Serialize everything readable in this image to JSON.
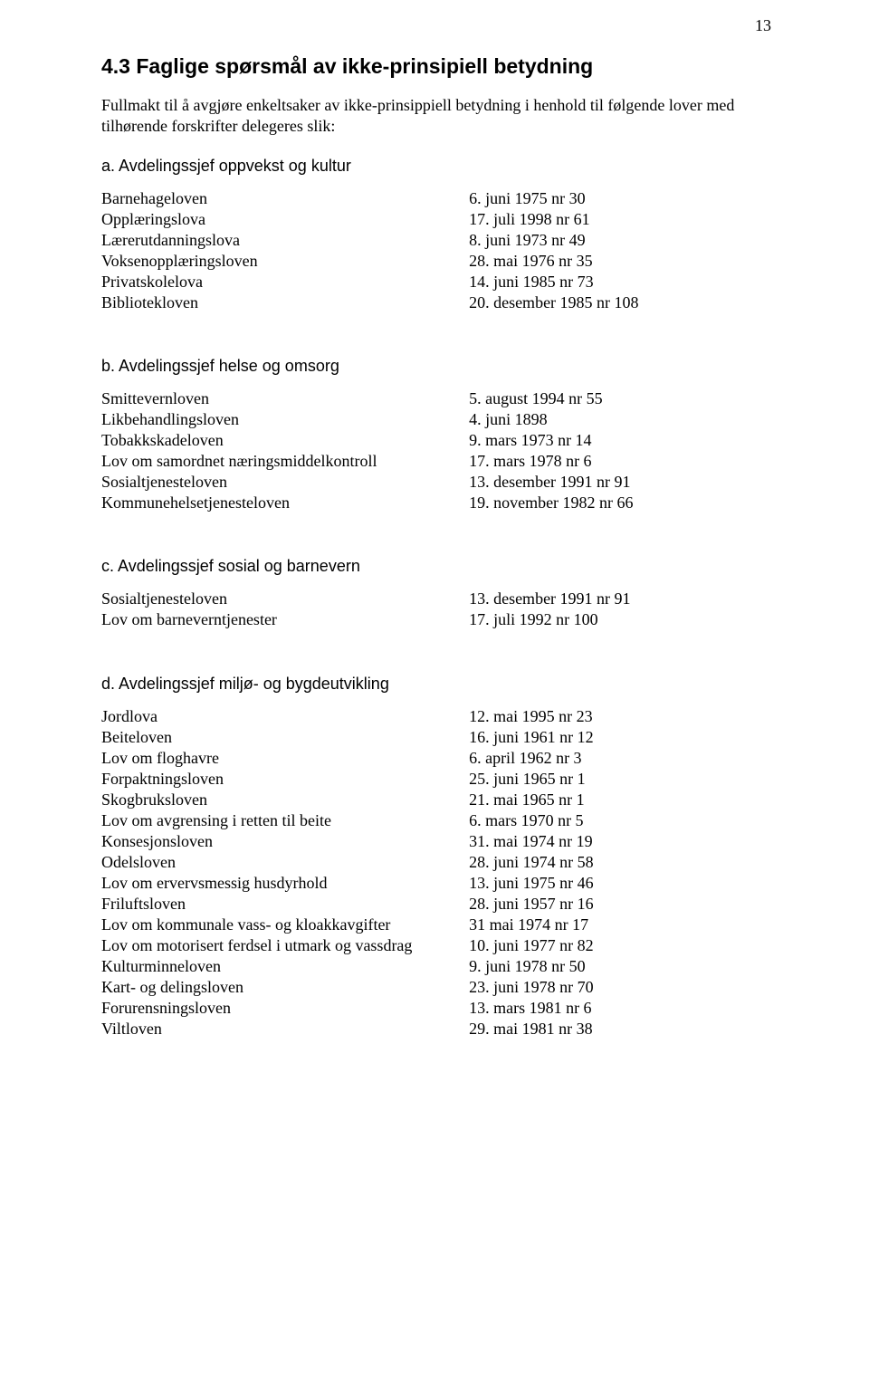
{
  "page_number": "13",
  "section_title": "4.3 Faglige spørsmål av ikke-prinsipiell betydning",
  "intro": "Fullmakt til å avgjøre enkeltsaker av ikke-prinsippiell betydning i henhold til følgende lover med tilhørende forskrifter delegeres slik:",
  "groups": [
    {
      "heading": "a.  Avdelingssjef oppvekst og kultur",
      "rows": [
        {
          "name": "Barnehageloven",
          "date": "6. juni 1975 nr 30"
        },
        {
          "name": "Opplæringslova",
          "date": "17. juli 1998 nr 61"
        },
        {
          "name": "Lærerutdanningslova",
          "date": "8. juni 1973 nr 49"
        },
        {
          "name": "Voksenopplæringsloven",
          "date": "28. mai 1976 nr 35"
        },
        {
          "name": "Privatskolelova",
          "date": "14. juni 1985 nr 73"
        },
        {
          "name": "Bibliotekloven",
          "date": "20. desember 1985 nr 108"
        }
      ]
    },
    {
      "heading": "b.  Avdelingssjef helse og omsorg",
      "rows": [
        {
          "name": "Smittevernloven",
          "date": "5. august 1994 nr 55"
        },
        {
          "name": "Likbehandlingsloven",
          "date": "4. juni 1898"
        },
        {
          "name": "Tobakkskadeloven",
          "date": "9. mars 1973 nr 14"
        },
        {
          "name": "Lov om samordnet næringsmiddelkontroll",
          "date": "17. mars 1978 nr 6"
        },
        {
          "name": "Sosialtjenesteloven",
          "date": "13. desember 1991 nr 91"
        },
        {
          "name": "Kommunehelsetjenesteloven",
          "date": "19. november 1982 nr 66"
        }
      ]
    },
    {
      "heading": "c.  Avdelingssjef sosial og barnevern",
      "rows": [
        {
          "name": "Sosialtjenesteloven",
          "date": "13. desember 1991 nr 91"
        },
        {
          "name": "Lov om barneverntjenester",
          "date": "17. juli 1992 nr 100"
        }
      ]
    },
    {
      "heading": "d.  Avdelingssjef miljø- og bygdeutvikling",
      "rows": [
        {
          "name": "Jordlova",
          "date": "12. mai 1995 nr 23"
        },
        {
          "name": "Beiteloven",
          "date": "16. juni 1961 nr 12"
        },
        {
          "name": "Lov om floghavre",
          "date": "6. april 1962 nr 3"
        },
        {
          "name": "Forpaktningsloven",
          "date": "25. juni 1965 nr 1"
        },
        {
          "name": "Skogbruksloven",
          "date": "21. mai 1965 nr 1"
        },
        {
          "name": "Lov om avgrensing i retten til beite",
          "date": "6. mars 1970 nr 5"
        },
        {
          "name": "Konsesjonsloven",
          "date": "31. mai 1974 nr 19"
        },
        {
          "name": "Odelsloven",
          "date": "28. juni 1974 nr 58"
        },
        {
          "name": "Lov om ervervsmessig husdyrhold",
          "date": "13. juni 1975 nr 46"
        },
        {
          "name": "Friluftsloven",
          "date": "28. juni 1957 nr 16"
        },
        {
          "name": "Lov om kommunale vass- og kloakkavgifter",
          "date": "31 mai 1974 nr 17"
        },
        {
          "name": "Lov om motorisert ferdsel i utmark og vassdrag",
          "date": "10. juni 1977 nr 82"
        },
        {
          "name": "Kulturminneloven",
          "date": "9. juni 1978 nr 50"
        },
        {
          "name": "Kart- og delingsloven",
          "date": "23. juni 1978 nr 70"
        },
        {
          "name": "Forurensningsloven",
          "date": "13. mars 1981 nr 6"
        },
        {
          "name": "Viltloven",
          "date": "29. mai 1981 nr 38"
        }
      ]
    }
  ]
}
